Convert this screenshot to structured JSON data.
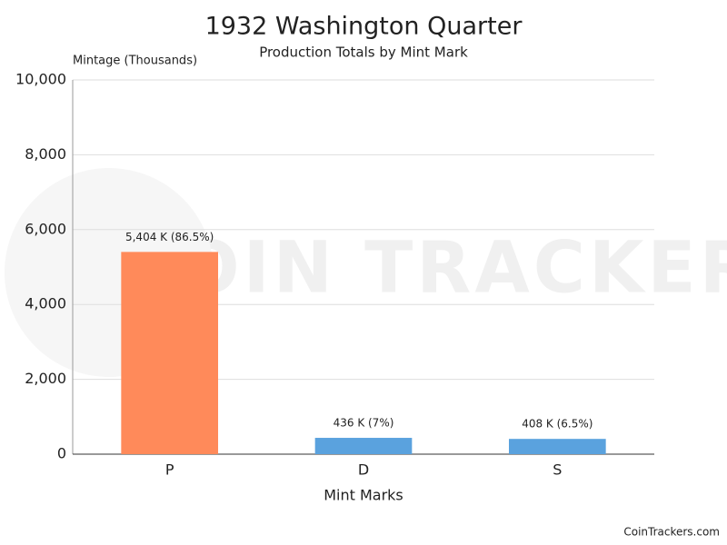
{
  "chart_data": {
    "type": "bar",
    "title": "1932 Washington Quarter",
    "subtitle": "Production Totals by Mint Mark",
    "y_label": "Mintage (Thousands)",
    "x_label": "Mint Marks",
    "watermark": "COIN TRACKERS",
    "credit": "CoinTrackers.com",
    "categories": [
      "P",
      "D",
      "S"
    ],
    "values": [
      5404,
      436,
      408
    ],
    "value_labels": [
      "5,404 K (86.5%)",
      "436 K (7%)",
      "408 K (6.5%)"
    ],
    "colors": [
      "#ff8a5a",
      "#5aa2de",
      "#5aa2de"
    ],
    "ylim": [
      0,
      10000
    ],
    "yticks": [
      0,
      {
        "value": 2000,
        "label": "2,000"
      },
      {
        "value": 4000,
        "label": "4,000"
      },
      {
        "value": 6000,
        "label": "6,000"
      },
      {
        "value": 8000,
        "label": "8,000"
      },
      {
        "value": 10000,
        "label": "10,000"
      }
    ],
    "grid": true
  }
}
